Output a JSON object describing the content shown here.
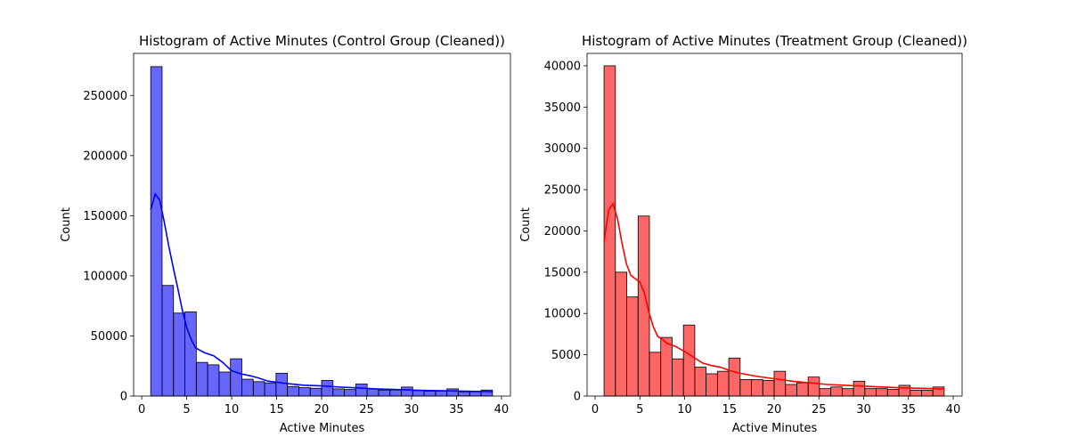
{
  "chart_data": [
    {
      "type": "bar",
      "title": "Histogram of Active Minutes (Control Group (Cleaned))",
      "xlabel": "Active Minutes",
      "ylabel": "Count",
      "xlim": [
        0,
        40
      ],
      "ylim": [
        0,
        285000
      ],
      "xticks": [
        0,
        5,
        10,
        15,
        20,
        25,
        30,
        35,
        40
      ],
      "yticks": [
        0,
        50000,
        100000,
        150000,
        200000,
        250000
      ],
      "bin_start": 1,
      "bin_width": 1.2667,
      "bar_color": "#0000ff",
      "kde_color": "#0000ff",
      "values": [
        274000,
        92000,
        69000,
        70000,
        28000,
        26000,
        20000,
        31000,
        14000,
        12000,
        11000,
        19000,
        8000,
        7000,
        6500,
        13000,
        6000,
        5500,
        10000,
        6000,
        5000,
        5000,
        7500,
        4500,
        4000,
        4000,
        6000,
        3500,
        3500,
        5000
      ],
      "kde": {
        "x": [
          1,
          1.5,
          2,
          2.5,
          3,
          3.5,
          4,
          4.5,
          5,
          5.5,
          6,
          7,
          8,
          9,
          10,
          11,
          12,
          13,
          14,
          15,
          16,
          18,
          20,
          22,
          24,
          26,
          28,
          30,
          32,
          34,
          36,
          38,
          39
        ],
        "y": [
          155000,
          168000,
          163000,
          145000,
          125000,
          107000,
          90000,
          72000,
          57000,
          47000,
          40000,
          36000,
          33500,
          28000,
          21000,
          18500,
          17000,
          15000,
          12500,
          11500,
          10500,
          9000,
          8500,
          7500,
          6800,
          6000,
          5500,
          5000,
          4600,
          4300,
          4000,
          3800,
          3600
        ]
      }
    },
    {
      "type": "bar",
      "title": "Histogram of Active Minutes (Treatment Group (Cleaned))",
      "xlabel": "Active Minutes",
      "ylabel": "Count",
      "xlim": [
        0,
        40
      ],
      "ylim": [
        0,
        41500
      ],
      "xticks": [
        0,
        5,
        10,
        15,
        20,
        25,
        30,
        35,
        40
      ],
      "yticks": [
        0,
        5000,
        10000,
        15000,
        20000,
        25000,
        30000,
        35000,
        40000
      ],
      "bin_start": 1,
      "bin_width": 1.2667,
      "bar_color": "#ff0000",
      "kde_color": "#ff0000",
      "values": [
        40000,
        15000,
        12000,
        21800,
        5300,
        7100,
        4500,
        8600,
        3500,
        2700,
        3000,
        4600,
        2000,
        2000,
        1900,
        3000,
        1400,
        1600,
        2300,
        900,
        1100,
        900,
        1800,
        900,
        900,
        800,
        1300,
        700,
        700,
        1100
      ],
      "kde": {
        "x": [
          1,
          1.5,
          2,
          2.5,
          3,
          3.5,
          4,
          4.5,
          5,
          5.5,
          6,
          6.5,
          7,
          7.5,
          8,
          9,
          10,
          11,
          12,
          13,
          14,
          15,
          16,
          18,
          20,
          22,
          24,
          26,
          28,
          30,
          32,
          34,
          36,
          38,
          39
        ],
        "y": [
          18700,
          22500,
          23300,
          21500,
          18500,
          16000,
          14600,
          14200,
          13800,
          12500,
          10200,
          8400,
          7200,
          6900,
          6400,
          6000,
          5400,
          4700,
          4000,
          3700,
          3500,
          3100,
          2800,
          2400,
          2100,
          1800,
          1600,
          1400,
          1300,
          1200,
          1100,
          1000,
          950,
          900,
          850
        ]
      }
    }
  ]
}
